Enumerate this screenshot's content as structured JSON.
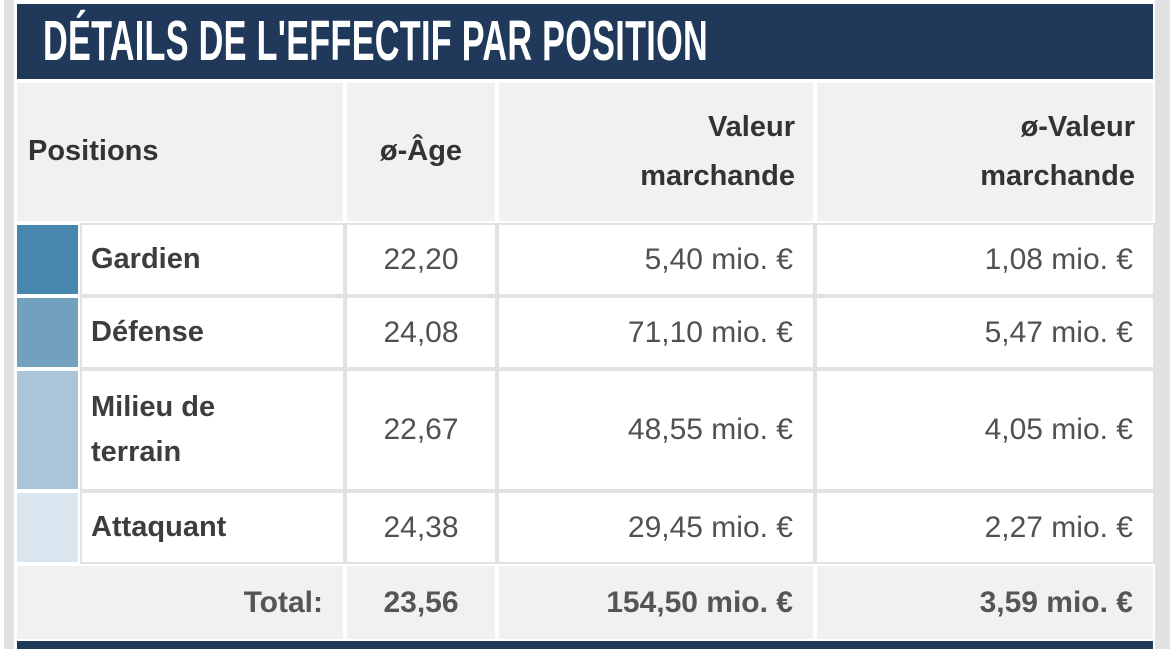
{
  "section": {
    "title": "DÉTAILS DE L'EFFECTIF PAR POSITION"
  },
  "table": {
    "headers": {
      "positions": "Positions",
      "avg_age": "ø-Âge",
      "market_value": "Valeur marchande",
      "avg_market_value": "ø-Valeur marchande"
    },
    "rows": [
      {
        "position": "Gardien",
        "avg_age": "22,20",
        "market_value": "5,40 mio. €",
        "avg_market_value": "1,08 mio. €",
        "color": "#4887ad"
      },
      {
        "position": "Défense",
        "avg_age": "24,08",
        "market_value": "71,10 mio. €",
        "avg_market_value": "5,47 mio. €",
        "color": "#74a0bf"
      },
      {
        "position": "Milieu de terrain",
        "avg_age": "22,67",
        "market_value": "48,55 mio. €",
        "avg_market_value": "4,05 mio. €",
        "color": "#aac5d9"
      },
      {
        "position": "Attaquant",
        "avg_age": "24,38",
        "market_value": "29,45 mio. €",
        "avg_market_value": "2,27 mio. €",
        "color": "#d9e5ef"
      }
    ],
    "total": {
      "label": "Total:",
      "avg_age": "23,56",
      "market_value": "154,50 mio. €",
      "avg_market_value": "3,59 mio. €"
    }
  },
  "colors": {
    "header_bar": "#20395b",
    "header_cell_bg": "#f1f1f1",
    "grid_line": "#e2e2e2",
    "page_edge": "#e2e2e2"
  }
}
